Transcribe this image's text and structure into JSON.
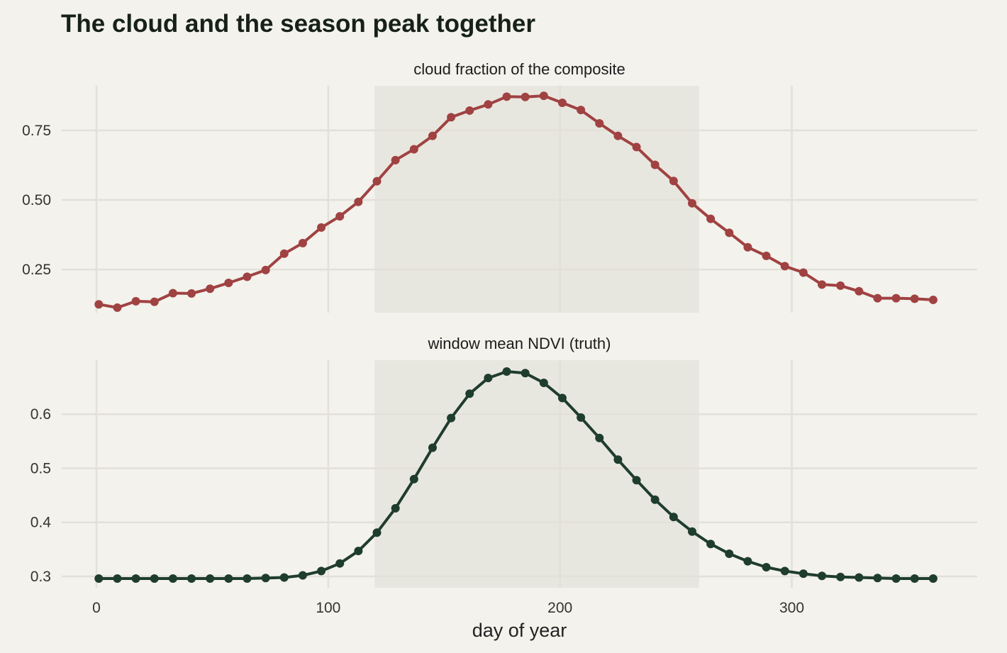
{
  "title": "The cloud and the season peak together",
  "colors": {
    "background": "#f3f2ec",
    "grid": "#e2e0d8",
    "shade": "#e8e7df",
    "cloud": "#a04242",
    "ndvi": "#1f3d2c"
  },
  "chart_data": {
    "type": "line",
    "title": "The cloud and the season peak together",
    "xlabel": "day of year",
    "x_ticks": [
      0,
      100,
      200,
      300
    ],
    "xlim": [
      -15,
      380
    ],
    "shaded_window": [
      120,
      260
    ],
    "grid": true,
    "x": [
      1,
      9,
      17,
      25,
      33,
      41,
      49,
      57,
      65,
      73,
      81,
      89,
      97,
      105,
      113,
      121,
      129,
      137,
      145,
      153,
      161,
      169,
      177,
      185,
      193,
      201,
      209,
      217,
      225,
      233,
      241,
      249,
      257,
      265,
      273,
      281,
      289,
      297,
      305,
      313,
      321,
      329,
      337,
      345,
      353,
      361
    ],
    "panels": [
      {
        "strip_label": "cloud fraction of the composite",
        "ylabel": "",
        "ylim": [
          0.095,
          0.91
        ],
        "y_ticks": [
          0.25,
          0.5,
          0.75
        ],
        "y_tick_labels": [
          "0.25",
          "0.50",
          "0.75"
        ],
        "color": "#a04242",
        "values": [
          0.125,
          0.113,
          0.136,
          0.134,
          0.165,
          0.164,
          0.181,
          0.202,
          0.224,
          0.248,
          0.307,
          0.345,
          0.401,
          0.441,
          0.493,
          0.567,
          0.643,
          0.682,
          0.73,
          0.797,
          0.821,
          0.843,
          0.871,
          0.87,
          0.874,
          0.849,
          0.823,
          0.775,
          0.73,
          0.69,
          0.626,
          0.568,
          0.488,
          0.432,
          0.382,
          0.33,
          0.299,
          0.262,
          0.239,
          0.196,
          0.192,
          0.172,
          0.147,
          0.147,
          0.145,
          0.141
        ]
      },
      {
        "strip_label": "window mean NDVI (truth)",
        "ylabel": "",
        "ylim": [
          0.279,
          0.7
        ],
        "y_ticks": [
          0.3,
          0.4,
          0.5,
          0.6
        ],
        "y_tick_labels": [
          "0.3",
          "0.4",
          "0.5",
          "0.6"
        ],
        "color": "#1f3d2c",
        "values": [
          0.296,
          0.296,
          0.296,
          0.296,
          0.296,
          0.296,
          0.296,
          0.296,
          0.296,
          0.297,
          0.298,
          0.302,
          0.31,
          0.324,
          0.347,
          0.381,
          0.426,
          0.48,
          0.538,
          0.593,
          0.638,
          0.667,
          0.679,
          0.676,
          0.658,
          0.63,
          0.594,
          0.556,
          0.516,
          0.478,
          0.442,
          0.41,
          0.383,
          0.36,
          0.342,
          0.328,
          0.317,
          0.31,
          0.305,
          0.301,
          0.299,
          0.298,
          0.297,
          0.296,
          0.296,
          0.296
        ]
      }
    ]
  }
}
